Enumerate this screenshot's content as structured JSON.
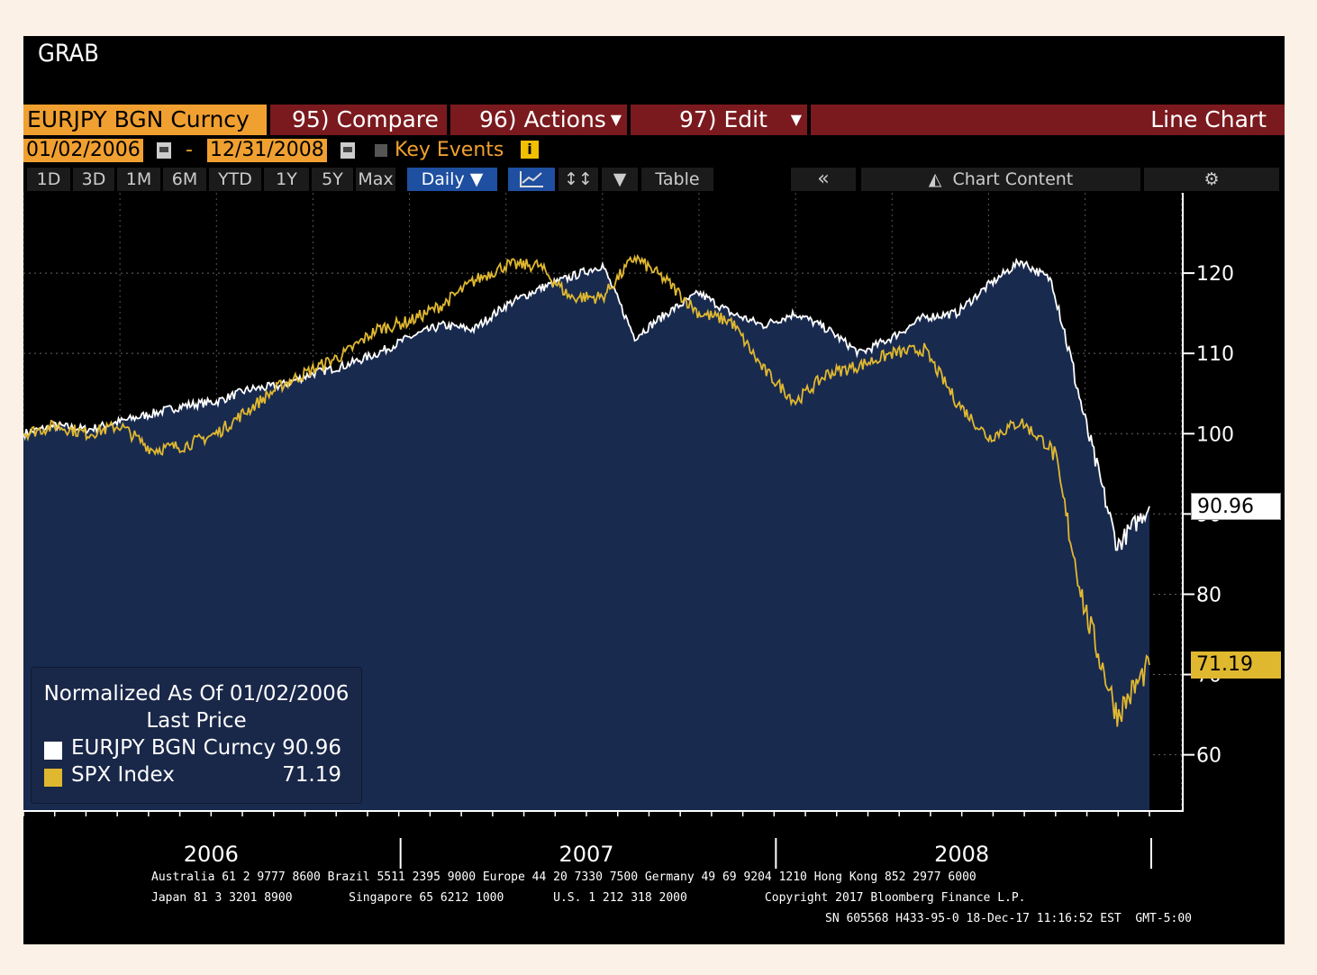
{
  "header": {
    "title": "GRAB"
  },
  "toolbar": {
    "ticker": "EURJPY BGN Curncy",
    "compare": "95) Compare",
    "actions": "96) Actions",
    "edit": "97) Edit",
    "chart_type": "Line Chart",
    "start_date": "01/02/2006",
    "date_sep": "-",
    "end_date": "12/31/2008",
    "key_events": "Key Events",
    "periods": [
      "1D",
      "3D",
      "1M",
      "6M",
      "YTD",
      "1Y",
      "5Y",
      "Max"
    ],
    "frequency": "Daily",
    "table": "Table",
    "collapse": "«",
    "chart_content": "Chart Content"
  },
  "legend": {
    "title": "Normalized As Of 01/02/2006",
    "subtitle": "Last Price",
    "items": [
      {
        "name": "EURJPY BGN Curncy",
        "value": "90.96"
      },
      {
        "name": "SPX Index",
        "value": "71.19"
      }
    ]
  },
  "footer": {
    "line1": "Australia 61 2 9777 8600 Brazil 5511 2395 9000 Europe 44 20 7330 7500 Germany 49 69 9204 1210 Hong Kong 852 2977 6000",
    "line2": "Japan 81 3 3201 8900        Singapore 65 6212 1000       U.S. 1 212 318 2000           Copyright 2017 Bloomberg Finance L.P.",
    "line3": "SN 605568 H433-95-0 18-Dec-17 11:16:52 EST  GMT-5:00"
  },
  "colors": {
    "eurjpy": "#ffffff",
    "spx": "#e0b830",
    "area": "#192a4f",
    "accent": "#f0a030",
    "toolbar_red": "#7a1a1e"
  },
  "chart_data": {
    "type": "line",
    "ylim": [
      53,
      130
    ],
    "yticks": [
      "60",
      "70",
      "80",
      "90",
      "100",
      "110",
      "120"
    ],
    "xlabels": [
      "2006",
      "2007",
      "2008"
    ],
    "x": [
      "2006-01",
      "2006-02",
      "2006-03",
      "2006-04",
      "2006-05",
      "2006-06",
      "2006-07",
      "2006-08",
      "2006-09",
      "2006-10",
      "2006-11",
      "2006-12",
      "2007-01",
      "2007-02",
      "2007-03",
      "2007-04",
      "2007-05",
      "2007-06",
      "2007-07",
      "2007-08",
      "2007-09",
      "2007-10",
      "2007-11",
      "2007-12",
      "2008-01",
      "2008-02",
      "2008-03",
      "2008-04",
      "2008-05",
      "2008-06",
      "2008-07",
      "2008-08",
      "2008-09",
      "2008-10",
      "2008-11",
      "2008-12"
    ],
    "series": [
      {
        "name": "EURJPY BGN Curncy",
        "area": true,
        "values": [
          100.0,
          101.0,
          100.5,
          101.5,
          102.5,
          103.5,
          104.0,
          105.5,
          106.0,
          107.5,
          108.5,
          110.0,
          112.0,
          113.5,
          113.0,
          116.0,
          118.0,
          119.5,
          121.0,
          112.0,
          115.0,
          117.5,
          115.0,
          113.5,
          115.0,
          113.0,
          110.0,
          112.0,
          114.5,
          115.0,
          118.5,
          121.5,
          119.0,
          101.5,
          86.0,
          90.96
        ]
      },
      {
        "name": "SPX Index",
        "values": [
          100.0,
          101.0,
          100.0,
          101.0,
          98.0,
          98.5,
          100.0,
          103.0,
          106.0,
          108.0,
          110.0,
          113.0,
          114.0,
          116.0,
          119.0,
          121.0,
          121.0,
          117.0,
          117.0,
          122.0,
          119.0,
          115.0,
          114.0,
          108.0,
          104.0,
          107.5,
          108.5,
          110.0,
          110.5,
          104.0,
          99.5,
          101.5,
          98.0,
          78.0,
          65.0,
          71.19
        ]
      }
    ],
    "last_values": [
      "90.96",
      "71.19"
    ]
  }
}
